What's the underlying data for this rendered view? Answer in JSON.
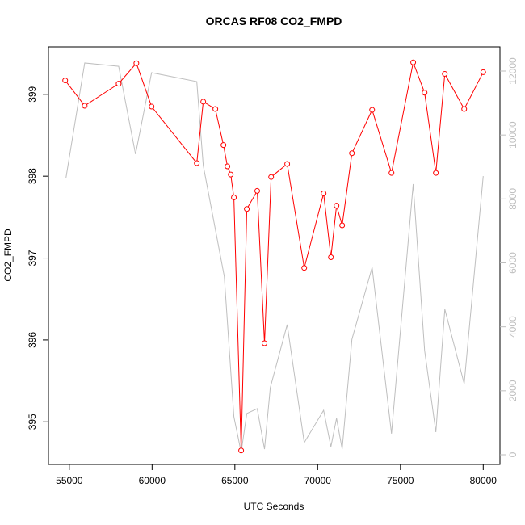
{
  "chart_data": {
    "type": "line",
    "title": "ORCAS RF08 CO2_FMPD",
    "xlabel": "UTC Seconds",
    "ylabel": "CO2_FMPD",
    "xlim": [
      53740,
      81010
    ],
    "ylim": [
      394.48,
      399.58
    ],
    "y2lim": [
      -303,
      12758
    ],
    "xticks": [
      55000,
      60000,
      65000,
      70000,
      75000,
      80000
    ],
    "yticks": [
      395,
      396,
      397,
      398,
      399
    ],
    "y2ticks": [
      0,
      2000,
      4000,
      6000,
      8000,
      10000,
      12000
    ],
    "y2_color": "#bebebe",
    "series": [
      {
        "color": "#bebebe",
        "axis": "y2",
        "markers": false,
        "x": [
          54800,
          55930,
          57980,
          59000,
          59970,
          62700,
          63090,
          64360,
          64940,
          65380,
          65720,
          66350,
          66790,
          67140,
          68160,
          69190,
          70360,
          70800,
          71140,
          71480,
          72070,
          73290,
          74460,
          75770,
          76460,
          77140,
          77680,
          78850,
          80000
        ],
        "values": [
          8665,
          12254,
          12150,
          9400,
          11950,
          11670,
          9045,
          5580,
          1190,
          75,
          1290,
          1440,
          175,
          2100,
          4070,
          380,
          1390,
          250,
          1140,
          175,
          3610,
          5860,
          660,
          8465,
          3260,
          710,
          4550,
          2220,
          8715
        ]
      },
      {
        "color": "#ff0000",
        "axis": "y",
        "markers": true,
        "x": [
          54750,
          55930,
          57980,
          59050,
          59970,
          62700,
          63090,
          63820,
          64310,
          64550,
          64750,
          64940,
          65380,
          65720,
          66350,
          66790,
          67190,
          68160,
          69190,
          70360,
          70800,
          71140,
          71480,
          72070,
          73290,
          74460,
          75770,
          76460,
          77140,
          77680,
          78850,
          80000
        ],
        "values": [
          399.17,
          398.86,
          399.13,
          399.38,
          398.85,
          398.16,
          398.91,
          398.82,
          398.38,
          398.12,
          398.02,
          397.74,
          394.65,
          397.6,
          397.82,
          395.96,
          397.99,
          398.15,
          396.88,
          397.79,
          397.01,
          397.64,
          397.4,
          398.28,
          398.81,
          398.04,
          399.39,
          399.02,
          398.04,
          399.25,
          398.82,
          399.27
        ]
      }
    ]
  }
}
